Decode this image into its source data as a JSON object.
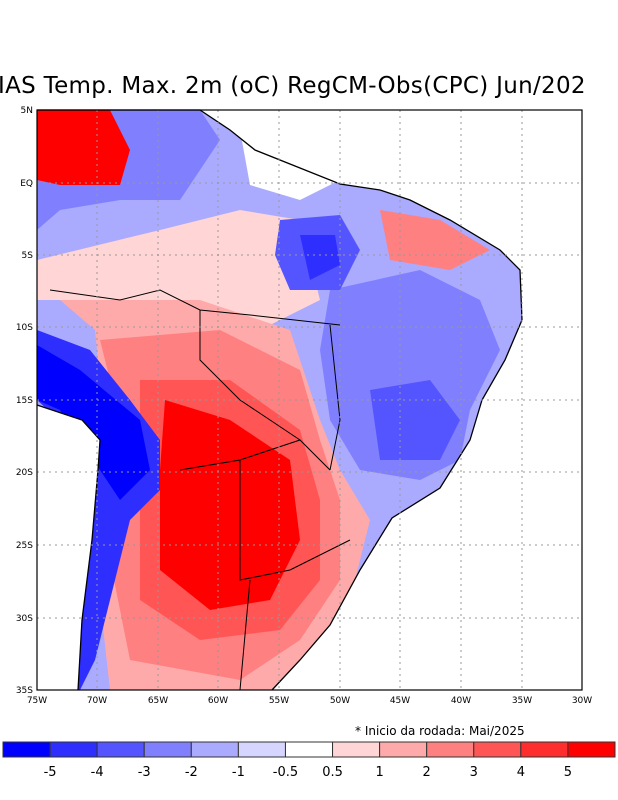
{
  "title": "IAS Temp. Max. 2m (oC) RegCM-Obs(CPC) Jun/202",
  "map": {
    "lat_ticks": [
      "5N",
      "EQ",
      "5S",
      "10S",
      "15S",
      "20S",
      "25S",
      "30S",
      "35S"
    ],
    "lon_ticks": [
      "75W",
      "70W",
      "65W",
      "60W",
      "55W",
      "50W",
      "45W",
      "40W",
      "35W",
      "30W"
    ],
    "lat_range": [
      -35,
      5
    ],
    "lon_range": [
      -75,
      -30
    ],
    "variable": "Max 2m temperature anomaly (oC)"
  },
  "note": "* Inicio da rodada: Mai/2025",
  "colorbar": {
    "labels": [
      "-5",
      "-4",
      "-3",
      "-2",
      "-1",
      "-0.5",
      "0.5",
      "1",
      "2",
      "3",
      "4",
      "5"
    ],
    "colors": [
      "#0000ff",
      "#2e2eff",
      "#5555ff",
      "#8080ff",
      "#aaaaff",
      "#d5d5ff",
      "#ffffff",
      "#ffd5d5",
      "#ffaaaa",
      "#ff8080",
      "#ff5555",
      "#ff2e2e",
      "#ff0000"
    ]
  }
}
